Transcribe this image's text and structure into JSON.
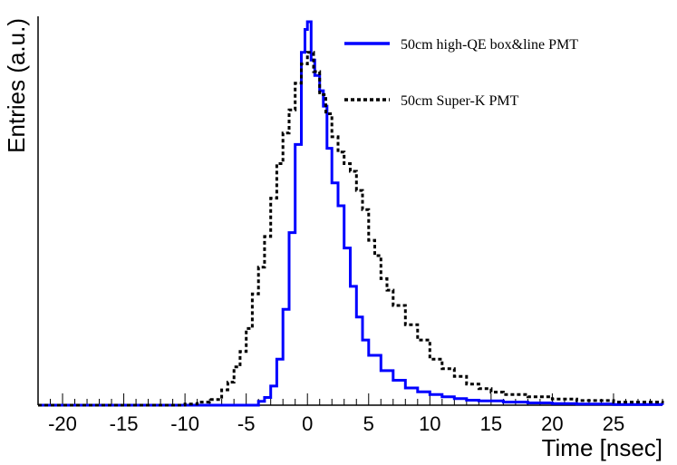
{
  "chart_data": {
    "type": "line",
    "subtype": "step-histogram",
    "title": "",
    "xlabel": "Time [nsec]",
    "ylabel": "Entries (a.u.)",
    "xlim": [
      -22,
      29
    ],
    "ylim": [
      0,
      1.0
    ],
    "grid": false,
    "legend_position": "top-right",
    "x_ticks": [
      -20,
      -15,
      -10,
      -5,
      0,
      5,
      10,
      15,
      20,
      25
    ],
    "x_tick_labels": [
      "-20",
      "-15",
      "-10",
      "-5",
      "0",
      "5",
      "10",
      "15",
      "20",
      "25"
    ],
    "series": [
      {
        "name": "50cm high-QE box&line PMT",
        "color": "#0000ff",
        "line_style": "solid",
        "points": [
          [
            -22,
            0
          ],
          [
            -5,
            0
          ],
          [
            -4,
            0.01
          ],
          [
            -3.5,
            0.02
          ],
          [
            -3,
            0.05
          ],
          [
            -2.5,
            0.12
          ],
          [
            -2,
            0.25
          ],
          [
            -1.5,
            0.45
          ],
          [
            -1,
            0.68
          ],
          [
            -0.5,
            0.92
          ],
          [
            -0.2,
            0.98
          ],
          [
            0,
            1.0
          ],
          [
            0.3,
            0.9
          ],
          [
            0.6,
            0.86
          ],
          [
            1,
            0.82
          ],
          [
            1.3,
            0.78
          ],
          [
            1.6,
            0.67
          ],
          [
            2,
            0.58
          ],
          [
            2.5,
            0.52
          ],
          [
            3,
            0.41
          ],
          [
            3.5,
            0.31
          ],
          [
            4,
            0.23
          ],
          [
            4.5,
            0.17
          ],
          [
            5,
            0.13
          ],
          [
            6,
            0.09
          ],
          [
            7,
            0.065
          ],
          [
            8,
            0.045
          ],
          [
            9,
            0.035
          ],
          [
            10,
            0.028
          ],
          [
            11,
            0.022
          ],
          [
            12,
            0.017
          ],
          [
            13,
            0.013
          ],
          [
            14,
            0.011
          ],
          [
            16,
            0.008
          ],
          [
            18,
            0.006
          ],
          [
            20,
            0.004
          ],
          [
            22,
            0.003
          ],
          [
            25,
            0.002
          ],
          [
            29,
            0.001
          ]
        ]
      },
      {
        "name": "50cm Super-K PMT",
        "color": "#000000",
        "line_style": "dashed",
        "points": [
          [
            -22,
            0
          ],
          [
            -12,
            0
          ],
          [
            -10,
            0.003
          ],
          [
            -9,
            0.008
          ],
          [
            -8,
            0.015
          ],
          [
            -7,
            0.04
          ],
          [
            -6.5,
            0.06
          ],
          [
            -6,
            0.1
          ],
          [
            -5.5,
            0.14
          ],
          [
            -5,
            0.2
          ],
          [
            -4.5,
            0.29
          ],
          [
            -4,
            0.36
          ],
          [
            -3.5,
            0.44
          ],
          [
            -3,
            0.54
          ],
          [
            -2.5,
            0.63
          ],
          [
            -2,
            0.71
          ],
          [
            -1.5,
            0.77
          ],
          [
            -1,
            0.84
          ],
          [
            -0.5,
            0.89
          ],
          [
            0,
            0.92
          ],
          [
            0.5,
            0.87
          ],
          [
            1,
            0.81
          ],
          [
            1.5,
            0.76
          ],
          [
            2,
            0.7
          ],
          [
            2.5,
            0.66
          ],
          [
            3,
            0.63
          ],
          [
            3.5,
            0.61
          ],
          [
            4,
            0.56
          ],
          [
            4.5,
            0.51
          ],
          [
            5,
            0.43
          ],
          [
            5.5,
            0.39
          ],
          [
            6,
            0.33
          ],
          [
            6.5,
            0.3
          ],
          [
            7,
            0.26
          ],
          [
            8,
            0.21
          ],
          [
            9,
            0.17
          ],
          [
            10,
            0.12
          ],
          [
            11,
            0.095
          ],
          [
            12,
            0.075
          ],
          [
            13,
            0.055
          ],
          [
            14,
            0.043
          ],
          [
            15,
            0.034
          ],
          [
            16,
            0.028
          ],
          [
            18,
            0.022
          ],
          [
            20,
            0.016
          ],
          [
            22,
            0.012
          ],
          [
            25,
            0.008
          ],
          [
            29,
            0.005
          ]
        ]
      }
    ]
  }
}
